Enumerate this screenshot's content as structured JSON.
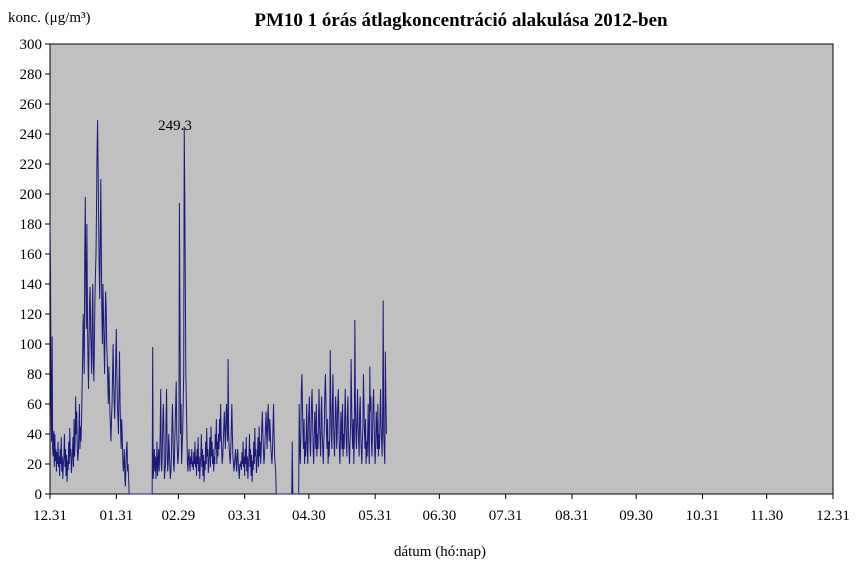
{
  "chart_data": {
    "type": "line",
    "title": "PM10 1 órás átlagkoncentráció  alakulása 2012-ben",
    "ylabel": "konc. (μg/m³)",
    "xlabel": "dátum (hó:nap)",
    "ylim": [
      0,
      300
    ],
    "ytick_step": 20,
    "yticks": [
      "0",
      "20",
      "40",
      "60",
      "80",
      "100",
      "120",
      "140",
      "160",
      "180",
      "200",
      "220",
      "240",
      "260",
      "280",
      "300"
    ],
    "x_ticks": [
      "12.31",
      "01.31",
      "02.29",
      "03.31",
      "04.30",
      "05.31",
      "06.30",
      "07.31",
      "08.31",
      "09.30",
      "10.31",
      "11.30",
      "12.31"
    ],
    "x_tick_days": [
      0,
      31,
      60,
      91,
      121,
      152,
      182,
      213,
      244,
      274,
      305,
      335,
      366
    ],
    "grid": false,
    "plot_background": "#c0c0c0",
    "line_color": "#1a1a7a",
    "annotation": {
      "text": "249.3",
      "day": 44,
      "value": 249.3
    },
    "series": [
      {
        "x_start": 0,
        "x_step": 0.25,
        "values": [
          178,
          150,
          60,
          35,
          105,
          30,
          25,
          42,
          18,
          40,
          22,
          30,
          15,
          28,
          20,
          35,
          18,
          25,
          12,
          30,
          20,
          38,
          15,
          25,
          10,
          20,
          25,
          40,
          18,
          30,
          12,
          26,
          8,
          22,
          16,
          35,
          20,
          44,
          25,
          30,
          14,
          20,
          28,
          38,
          18,
          50,
          25,
          35,
          65,
          40,
          55,
          30,
          22,
          28,
          40,
          60,
          30,
          45,
          35,
          50,
          70,
          90,
          120,
          100,
          80,
          160,
          198,
          140,
          110,
          180,
          120,
          90,
          70,
          100,
          130,
          138,
          110,
          95,
          80,
          120,
          140,
          90,
          75,
          100,
          130,
          147,
          160,
          190,
          228,
          249.3,
          215,
          180,
          150,
          130,
          170,
          210,
          160,
          120,
          100,
          140,
          120,
          100,
          80,
          110,
          135,
          125,
          100,
          90,
          75,
          60,
          85,
          70,
          55,
          45,
          35,
          50,
          60,
          80,
          100,
          75,
          60,
          50,
          70,
          90,
          110,
          80,
          60,
          50,
          40,
          70,
          95,
          60,
          45,
          30,
          50,
          40,
          25,
          15,
          20,
          30,
          10,
          5,
          20,
          30,
          35,
          15,
          20,
          10,
          0,
          0,
          0,
          0,
          0,
          0,
          0,
          0,
          0,
          0,
          0,
          0,
          0,
          0,
          0,
          0,
          0,
          0,
          0,
          0,
          0,
          0,
          0,
          0,
          0,
          0,
          0,
          0,
          0,
          0,
          0,
          0,
          0,
          0,
          0,
          0,
          0,
          0,
          0,
          0,
          0,
          0,
          0,
          0,
          98,
          10,
          20,
          30,
          15,
          25,
          10,
          20,
          35,
          12,
          20,
          30,
          15,
          25,
          40,
          70,
          20,
          15,
          30,
          50,
          60,
          40,
          10,
          15,
          20,
          50,
          70,
          30,
          15,
          20,
          40,
          30,
          20,
          10,
          15,
          25,
          45,
          60,
          40,
          20,
          15,
          30,
          45,
          60,
          75,
          40,
          30,
          20,
          25,
          35,
          194,
          120,
          40,
          60,
          20,
          30,
          40,
          60,
          80,
          245,
          200,
          140,
          80,
          60,
          40,
          20,
          15,
          25,
          30,
          20,
          15,
          25,
          20,
          30,
          18,
          22,
          16,
          28,
          20,
          35,
          18,
          25,
          12,
          30,
          20,
          38,
          15,
          25,
          10,
          20,
          25,
          40,
          18,
          30,
          12,
          26,
          8,
          22,
          16,
          35,
          20,
          44,
          25,
          30,
          14,
          20,
          28,
          38,
          18,
          45,
          25,
          35,
          20,
          30,
          15,
          25,
          20,
          40,
          30,
          50,
          20,
          35,
          25,
          40,
          30,
          50,
          35,
          60,
          40,
          30,
          20,
          25,
          35,
          45,
          55,
          40,
          30,
          50,
          60,
          45,
          35,
          90,
          40,
          30,
          25,
          20,
          30,
          45,
          60,
          40,
          25,
          20,
          15,
          20,
          25,
          30,
          20,
          15,
          25,
          30,
          20,
          15,
          10,
          20,
          18,
          22,
          16,
          28,
          20,
          35,
          18,
          25,
          12,
          30,
          20,
          38,
          15,
          25,
          10,
          20,
          25,
          40,
          18,
          30,
          12,
          26,
          8,
          22,
          16,
          35,
          20,
          44,
          25,
          30,
          14,
          20,
          28,
          38,
          18,
          45,
          25,
          35,
          20,
          30,
          45,
          55,
          40,
          30,
          20,
          25,
          35,
          45,
          55,
          40,
          30,
          50,
          60,
          45,
          35,
          50,
          40,
          30,
          25,
          20,
          30,
          45,
          60,
          40,
          25,
          20,
          15,
          0,
          0,
          0,
          0,
          0,
          0,
          0,
          0,
          0,
          0,
          0,
          0,
          0,
          0,
          0,
          0,
          0,
          0,
          0,
          0,
          0,
          0,
          0,
          0,
          0,
          0,
          0,
          0,
          0,
          0,
          35,
          0,
          0,
          0,
          0,
          0,
          0,
          0,
          0,
          0,
          0,
          0,
          0,
          60,
          30,
          20,
          40,
          70,
          80,
          60,
          40,
          30,
          50,
          20,
          35,
          25,
          40,
          60,
          30,
          20,
          45,
          55,
          65,
          35,
          25,
          40,
          60,
          70,
          50,
          30,
          20,
          35,
          55,
          45,
          30,
          60,
          25,
          40,
          30,
          50,
          70,
          45,
          35,
          25,
          55,
          65,
          40,
          30,
          20,
          35,
          45,
          70,
          80,
          60,
          40,
          30,
          50,
          20,
          35,
          25,
          40,
          96,
          60,
          40,
          30,
          60,
          80,
          50,
          35,
          25,
          45,
          65,
          55,
          30,
          40,
          60,
          70,
          50,
          30,
          20,
          35,
          55,
          45,
          30,
          60,
          25,
          40,
          30,
          50,
          70,
          45,
          35,
          25,
          55,
          65,
          40,
          30,
          20,
          35,
          45,
          90,
          60,
          40,
          30,
          50,
          20,
          35,
          116,
          60,
          40,
          30,
          50,
          70,
          45,
          35,
          25,
          55,
          65,
          40,
          30,
          20,
          35,
          45,
          80,
          60,
          40,
          30,
          50,
          20,
          35,
          25,
          40,
          60,
          30,
          20,
          85,
          55,
          65,
          35,
          25,
          40,
          60,
          70,
          50,
          30,
          20,
          35,
          55,
          45,
          30,
          60,
          25,
          40,
          30,
          50,
          70,
          45,
          35,
          25,
          55,
          129,
          40,
          30,
          20,
          95,
          65,
          40
        ]
      }
    ]
  }
}
